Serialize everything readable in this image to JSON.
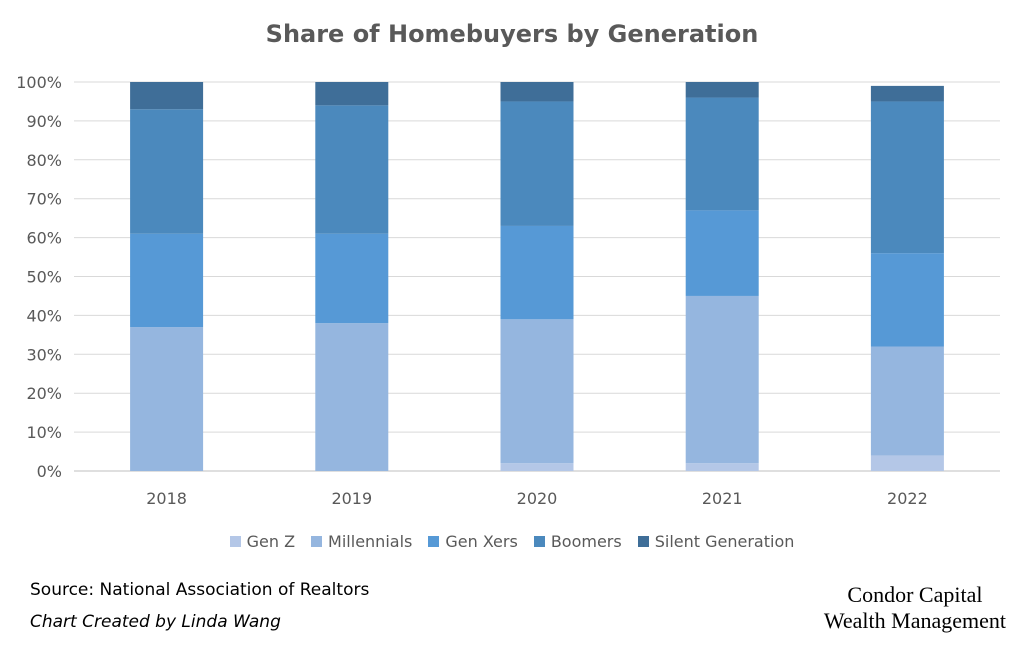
{
  "chart_data": {
    "type": "bar",
    "stacked": true,
    "title": "Share of Homebuyers by Generation",
    "categories": [
      "2018",
      "2019",
      "2020",
      "2021",
      "2022"
    ],
    "series": [
      {
        "name": "Gen Z",
        "color": "#b4c7e7",
        "values": [
          0,
          0,
          2,
          2,
          4
        ]
      },
      {
        "name": "Millennials",
        "color": "#95b6df",
        "values": [
          37,
          38,
          37,
          43,
          28
        ]
      },
      {
        "name": "Gen Xers",
        "color": "#5699d6",
        "values": [
          24,
          23,
          24,
          22,
          24
        ]
      },
      {
        "name": "Boomers",
        "color": "#4b89bd",
        "values": [
          32,
          33,
          32,
          29,
          39
        ]
      },
      {
        "name": "Silent Generation",
        "color": "#3f6e98",
        "values": [
          7,
          6,
          5,
          4,
          4
        ]
      }
    ],
    "yticks": [
      "0%",
      "10%",
      "20%",
      "30%",
      "40%",
      "50%",
      "60%",
      "70%",
      "80%",
      "90%",
      "100%"
    ],
    "ylim": [
      0,
      100
    ],
    "grid": true,
    "legend": "bottom"
  },
  "footer": {
    "source": "Source: National Association of Realtors",
    "credit": "Chart Created by Linda Wang"
  },
  "brand": {
    "line1": "Condor Capital",
    "line2": "Wealth Management"
  }
}
